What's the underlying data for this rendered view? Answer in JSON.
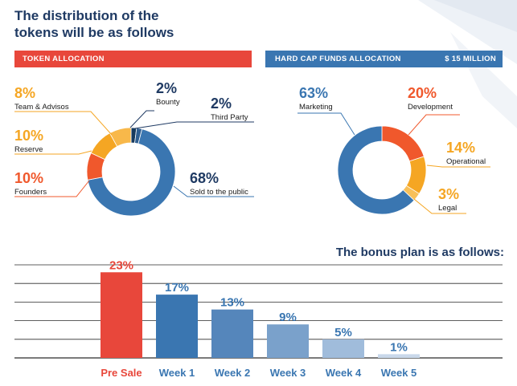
{
  "title": "The distribution of the\ntokens will be as follows",
  "token_allocation": {
    "header": "TOKEN ALLOCATION",
    "items": [
      {
        "pct": "2%",
        "label": "Bounty"
      },
      {
        "pct": "2%",
        "label": "Third Party"
      },
      {
        "pct": "68%",
        "label": "Sold to the public"
      },
      {
        "pct": "10%",
        "label": "Founders"
      },
      {
        "pct": "10%",
        "label": "Reserve"
      },
      {
        "pct": "8%",
        "label": "Team & Advisos"
      }
    ]
  },
  "hard_cap": {
    "header": "HARD CAP FUNDS ALLOCATION",
    "amount": "$ 15 MILLION",
    "items": [
      {
        "pct": "20%",
        "label": "Development"
      },
      {
        "pct": "14%",
        "label": "Operational"
      },
      {
        "pct": "3%",
        "label": "Legal"
      },
      {
        "pct": "63%",
        "label": "Marketing"
      }
    ]
  },
  "bonus_title": "The bonus plan is as follows:",
  "colors": {
    "navy": "#1f3a63",
    "red": "#e8473b",
    "blue": "#3a76b1",
    "orange_red": "#f0582c",
    "orange": "#f5a623",
    "dark_navy": "#173a5e"
  },
  "chart_data": [
    {
      "type": "pie",
      "title": "TOKEN ALLOCATION",
      "style": "donut",
      "slices": [
        {
          "label": "Bounty",
          "value": 2,
          "color": "#173a5e"
        },
        {
          "label": "Third Party",
          "value": 2,
          "color": "#2f5f92"
        },
        {
          "label": "Sold to the public",
          "value": 68,
          "color": "#3a76b1"
        },
        {
          "label": "Founders",
          "value": 10,
          "color": "#f0582c"
        },
        {
          "label": "Reserve",
          "value": 10,
          "color": "#f5a623"
        },
        {
          "label": "Team & Advisos",
          "value": 8,
          "color": "#f8b84a"
        }
      ]
    },
    {
      "type": "pie",
      "title": "HARD CAP FUNDS ALLOCATION",
      "style": "donut",
      "slices": [
        {
          "label": "Development",
          "value": 20,
          "color": "#f0582c"
        },
        {
          "label": "Operational",
          "value": 14,
          "color": "#f5a623"
        },
        {
          "label": "Legal",
          "value": 3,
          "color": "#f8c05a"
        },
        {
          "label": "Marketing",
          "value": 63,
          "color": "#3a76b1"
        }
      ]
    },
    {
      "type": "bar",
      "title": "The bonus plan is as follows:",
      "categories": [
        "Pre Sale",
        "Week 1",
        "Week 2",
        "Week 3",
        "Week 4",
        "Week 5"
      ],
      "values": [
        23,
        17,
        13,
        9,
        5,
        1
      ],
      "value_labels": [
        "23%",
        "17%",
        "13%",
        "9%",
        "5%",
        "1%"
      ],
      "colors": [
        "#e8473b",
        "#3a76b1",
        "#5586bb",
        "#7aa1cb",
        "#a0bcdb",
        "#c9d8ea"
      ],
      "ylim": [
        0,
        25
      ],
      "grid": true
    }
  ]
}
